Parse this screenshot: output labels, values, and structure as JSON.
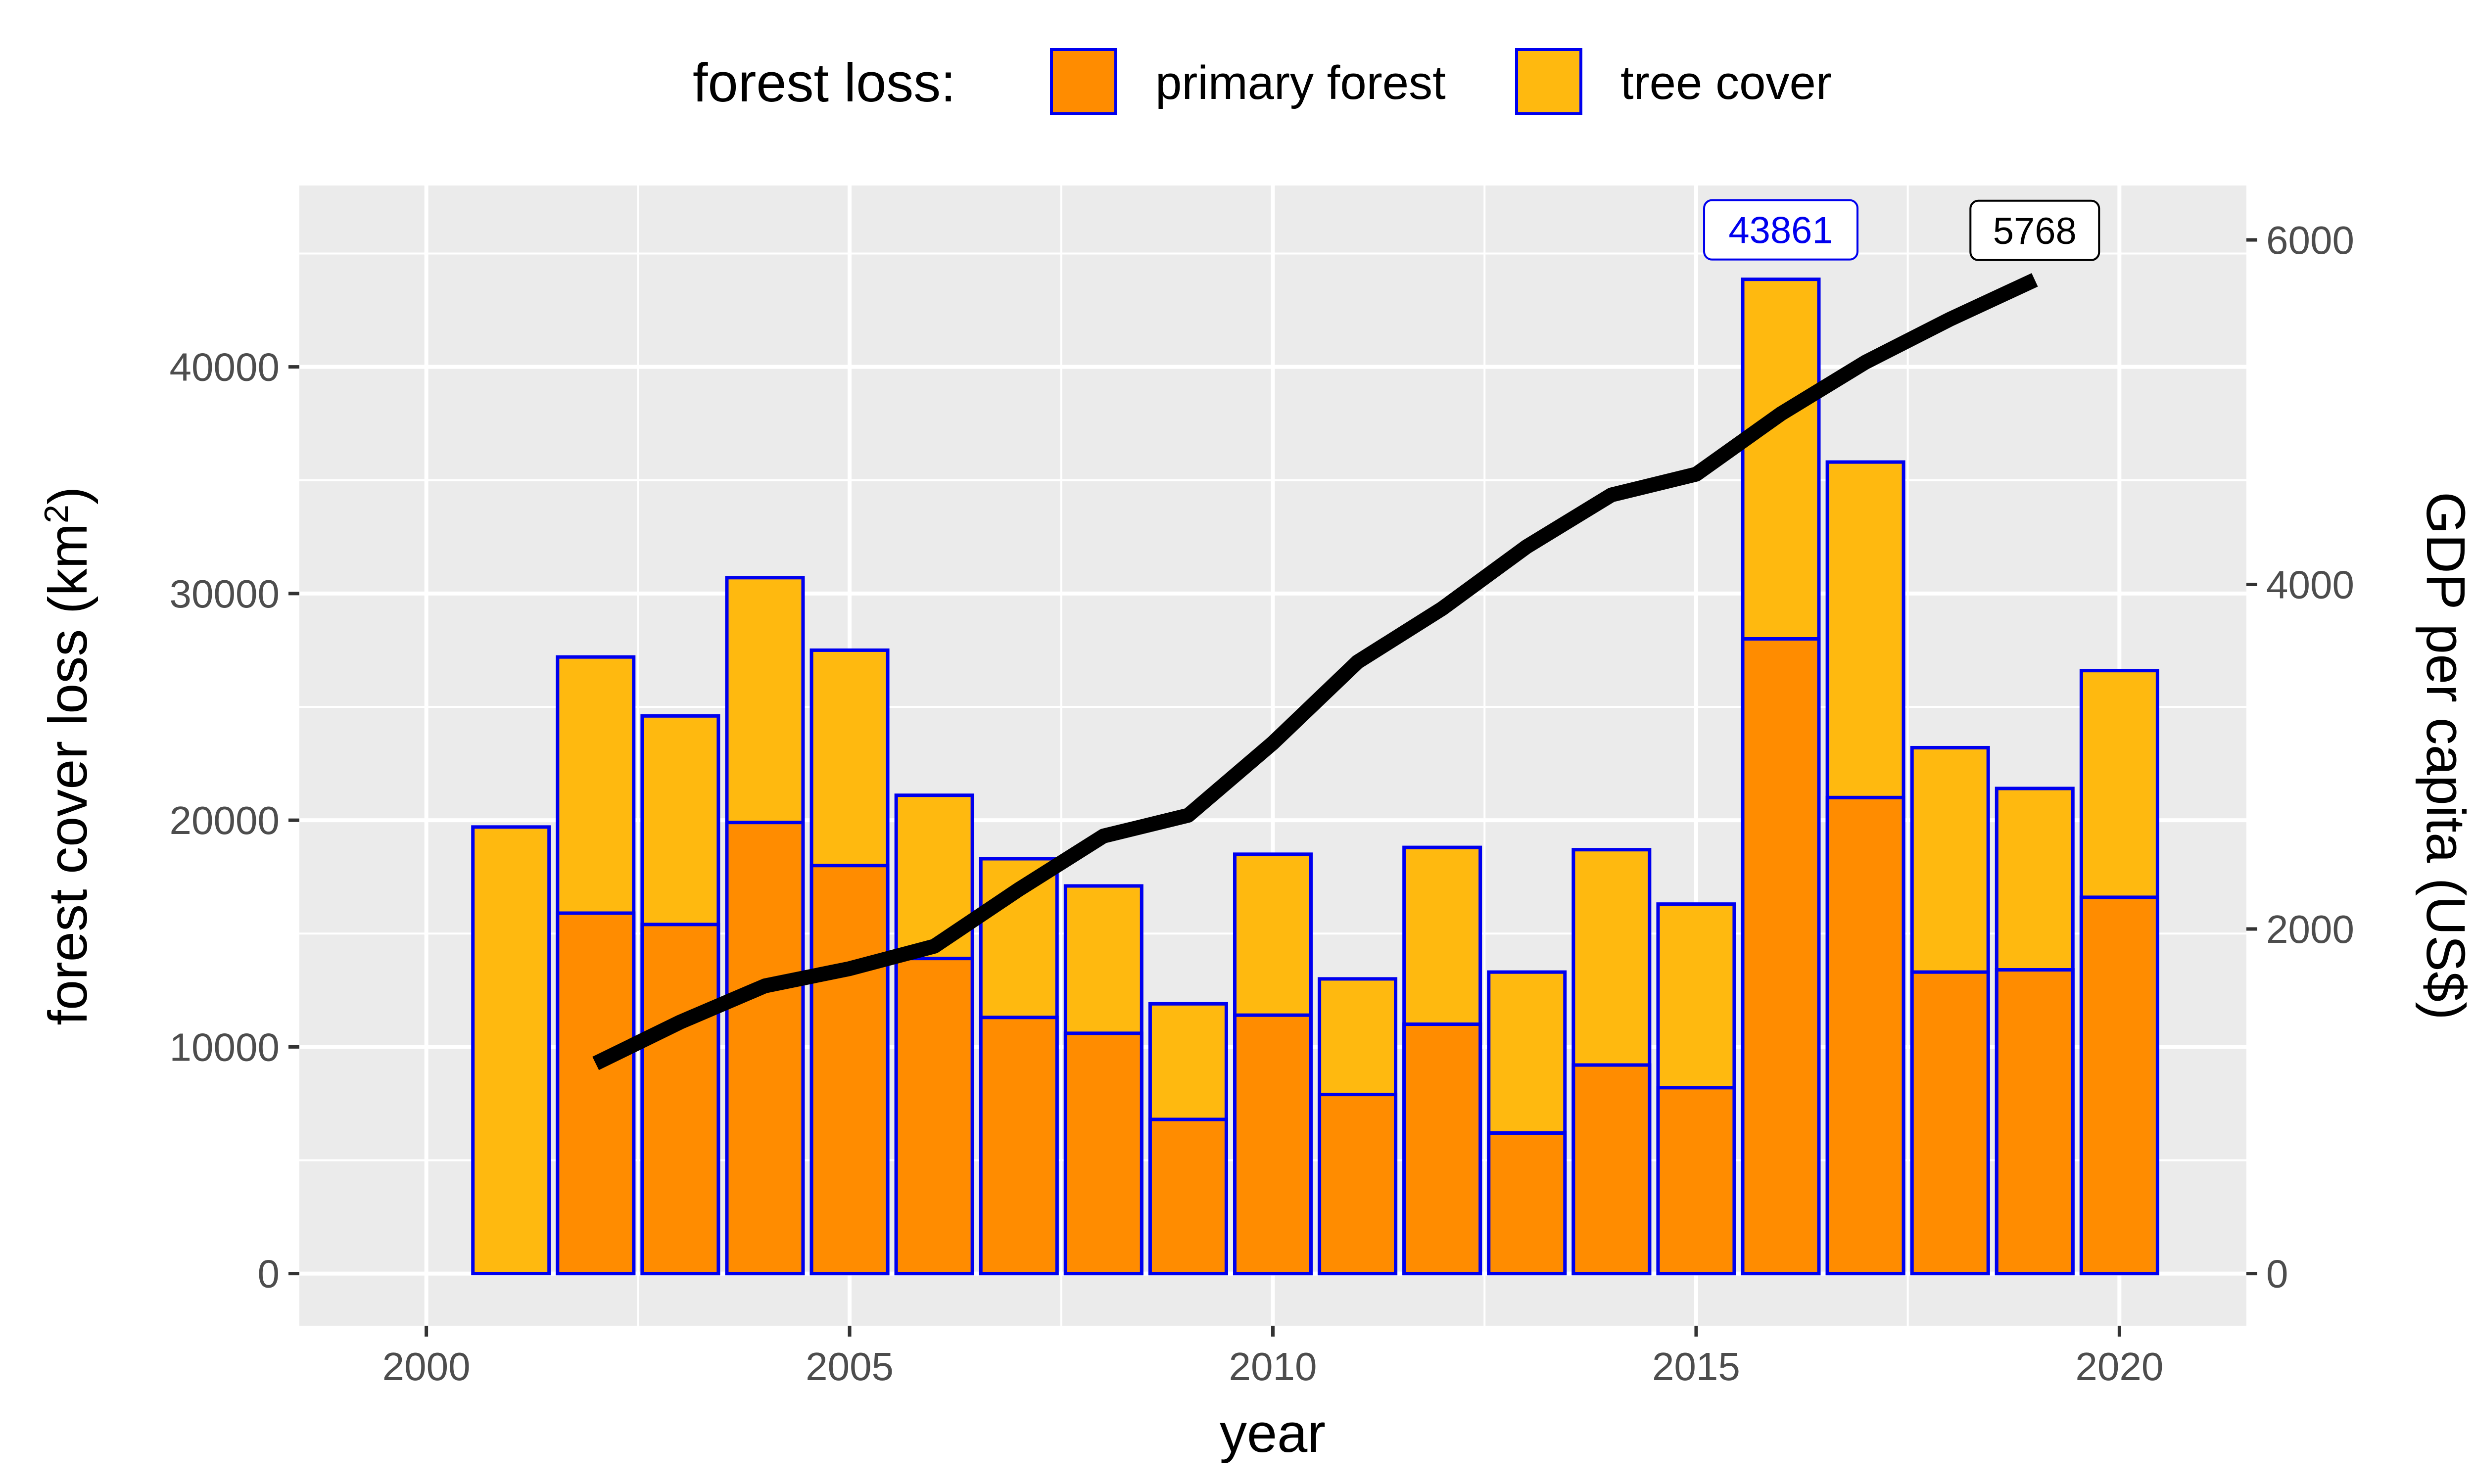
{
  "chart_data": {
    "type": "bar",
    "stacked": true,
    "xlabel": "year",
    "ylabel": "forest cover loss (km",
    "ylabel_superscript": "2",
    "ylabel_close": ")",
    "y2label": "GDP per capita (US$)",
    "xlim": [
      1998.5,
      2021.5
    ],
    "ylim": [
      -2300,
      48000
    ],
    "x_ticks": [
      2000,
      2005,
      2010,
      2015,
      2020
    ],
    "y_ticks": [
      0,
      10000,
      20000,
      30000,
      40000
    ],
    "y2_ticks": [
      0,
      2000,
      4000,
      6000
    ],
    "y2_scale_factor": 7.6,
    "grid": true,
    "legend": {
      "title": "forest loss:",
      "position": "top",
      "entries": [
        {
          "label": "primary forest",
          "color": "#FF8C00"
        },
        {
          "label": "tree cover",
          "color": "#FFB90F"
        }
      ]
    },
    "colors": {
      "primary": "#FF8C00",
      "tree": "#FFB90F",
      "bar_border": "#0000EE",
      "line": "#000000",
      "panel": "#EBEBEB",
      "grid": "#FFFFFF"
    },
    "years": [
      2001,
      2002,
      2003,
      2004,
      2005,
      2006,
      2007,
      2008,
      2009,
      2010,
      2011,
      2012,
      2013,
      2014,
      2015,
      2016,
      2017,
      2018,
      2019,
      2020
    ],
    "series": [
      {
        "name": "primary forest",
        "values": [
          0,
          15900,
          15400,
          19900,
          18000,
          13900,
          11300,
          10600,
          6800,
          11400,
          7900,
          11000,
          6200,
          9200,
          8200,
          28000,
          21000,
          13300,
          13400,
          16600
        ]
      },
      {
        "name": "tree cover",
        "values": [
          19700,
          27200,
          24600,
          30700,
          27500,
          21100,
          18300,
          17100,
          11900,
          18500,
          13000,
          18800,
          13300,
          18700,
          16300,
          43861,
          35800,
          23200,
          21400,
          26600
        ]
      }
    ],
    "gdp_line": {
      "x": [
        2002,
        2003,
        2004,
        2005,
        2006,
        2007,
        2008,
        2009,
        2010,
        2011,
        2012,
        2013,
        2014,
        2015,
        2016,
        2017,
        2018,
        2019
      ],
      "y": [
        1220,
        1460,
        1670,
        1770,
        1900,
        2230,
        2540,
        2660,
        3080,
        3550,
        3860,
        4220,
        4520,
        4640,
        4990,
        5290,
        5540,
        5768
      ]
    },
    "annotations": [
      {
        "text": "43861",
        "x": 2016,
        "y": 43861,
        "color": "#0000EE"
      },
      {
        "text": "5768",
        "x": 2019,
        "y2": 5768,
        "color": "#000000"
      }
    ]
  }
}
